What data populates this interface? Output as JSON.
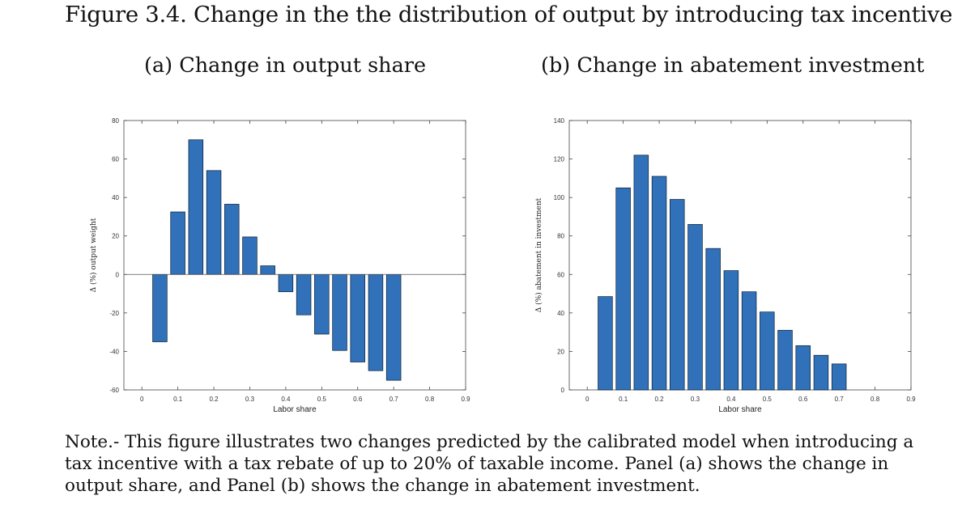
{
  "figure": {
    "title": "Figure 3.4. Change in the the distribution of output by introducing tax incentive"
  },
  "note": {
    "lines": [
      "Note.- This figure illustrates two changes predicted by the calibrated model when introducing a",
      "tax incentive with a tax rebate of up to 20% of taxable income. Panel (a) shows the change in",
      "output share, and Panel (b) shows the change in abatement investment."
    ]
  },
  "colors": {
    "bar": "#3071b9",
    "axis": "#222222"
  },
  "chart_data": [
    {
      "type": "bar",
      "title": "(a) Change in output share",
      "xlabel": "Labor share",
      "ylabel": "Δ (%) output weight",
      "x": [
        0.05,
        0.1,
        0.15,
        0.2,
        0.25,
        0.3,
        0.35,
        0.4,
        0.45,
        0.5,
        0.55,
        0.6,
        0.65,
        0.7
      ],
      "values": [
        -35,
        32.5,
        70,
        54,
        36.5,
        19.5,
        4.5,
        -9,
        -21,
        -31,
        -39.5,
        -45.5,
        -50,
        -55
      ],
      "xlim": [
        -0.05,
        0.9
      ],
      "ylim": [
        -60,
        80
      ],
      "xticks": [
        "0",
        "0.1",
        "0.2",
        "0.3",
        "0.4",
        "0.5",
        "0.6",
        "0.7",
        "0.8",
        "0.9"
      ],
      "yticks": [
        "-60",
        "-40",
        "-20",
        "0",
        "20",
        "40",
        "60",
        "80"
      ],
      "zero_line": true,
      "grid": false
    },
    {
      "type": "bar",
      "title": "(b) Change in abatement investment",
      "xlabel": "Labor share",
      "ylabel": "Δ (%) abatement in investment",
      "x": [
        0.05,
        0.1,
        0.15,
        0.2,
        0.25,
        0.3,
        0.35,
        0.4,
        0.45,
        0.5,
        0.55,
        0.6,
        0.65,
        0.7
      ],
      "values": [
        48.5,
        105,
        122,
        111,
        99,
        86,
        73.5,
        62,
        51,
        40.5,
        31,
        23,
        18,
        13.5
      ],
      "xlim": [
        -0.05,
        0.9
      ],
      "ylim": [
        0,
        140
      ],
      "xticks": [
        "0",
        "0.1",
        "0.2",
        "0.3",
        "0.4",
        "0.5",
        "0.6",
        "0.7",
        "0.8",
        "0.9"
      ],
      "yticks": [
        "0",
        "20",
        "40",
        "60",
        "80",
        "100",
        "120",
        "140"
      ],
      "zero_line": false,
      "grid": false
    }
  ]
}
